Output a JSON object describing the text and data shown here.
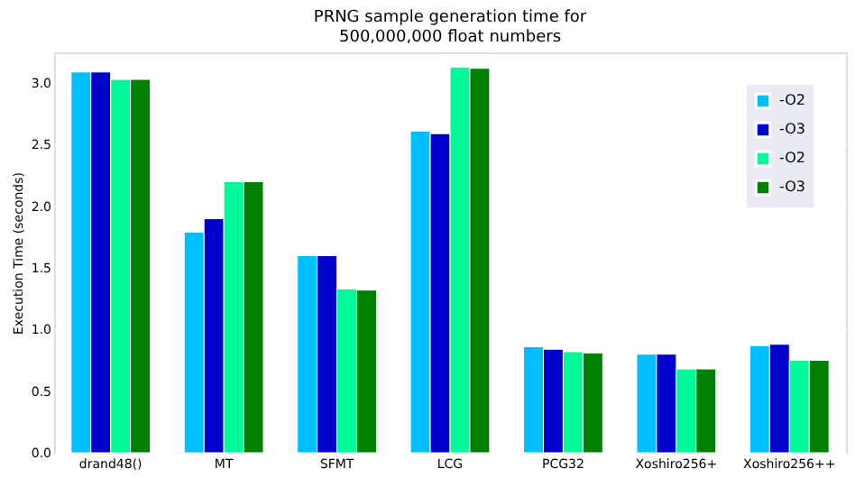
{
  "chart_data": {
    "type": "bar",
    "title": "PRNG sample generation time for\n500,000,000 float numbers",
    "ylabel": "Execution Time (seconds)",
    "categories": [
      "drand48()",
      "MT",
      "SFMT",
      "LCG",
      "PCG32",
      "Xoshiro256+",
      "Xoshiro256++"
    ],
    "series": [
      {
        "name": "-O2",
        "color": "#00bfff",
        "values": [
          3.09,
          1.79,
          1.6,
          2.61,
          0.86,
          0.8,
          0.87
        ]
      },
      {
        "name": "-O3",
        "color": "#0000cd",
        "values": [
          3.09,
          1.9,
          1.6,
          2.59,
          0.84,
          0.8,
          0.88
        ]
      },
      {
        "name": "-O2",
        "color": "#00fa9a",
        "values": [
          3.03,
          2.2,
          1.33,
          3.13,
          0.82,
          0.68,
          0.75
        ]
      },
      {
        "name": "-O3",
        "color": "#008000",
        "values": [
          3.03,
          2.2,
          1.32,
          3.12,
          0.81,
          0.68,
          0.75
        ]
      }
    ],
    "ylim": [
      0,
      3.25
    ],
    "yticks": [
      {
        "value": 0,
        "label": "0.0"
      },
      0.5,
      {
        "value": 1,
        "label": "1.0"
      },
      1.5,
      {
        "value": 2,
        "label": "2.0"
      },
      2.5,
      {
        "value": 3,
        "label": "3.0"
      }
    ],
    "grid": "y",
    "legend": "top right"
  }
}
